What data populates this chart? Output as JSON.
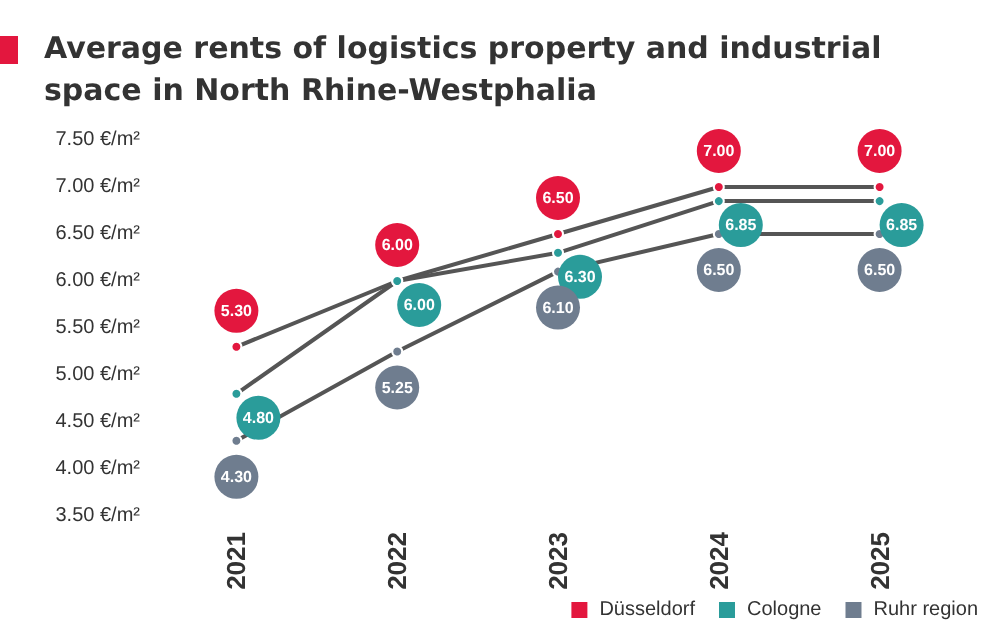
{
  "chart_data": {
    "type": "line",
    "title": "Average rents of logistics property and industrial space in North Rhine-Westphalia",
    "categories": [
      "2021",
      "2022",
      "2023",
      "2024",
      "2025"
    ],
    "series": [
      {
        "name": "Düsseldorf",
        "color": "#e3173e",
        "values": [
          5.3,
          6.0,
          6.5,
          7.0,
          7.0
        ],
        "value_labels": [
          "5.30",
          "6.00",
          "6.50",
          "7.00",
          "7.00"
        ]
      },
      {
        "name": "Cologne",
        "color": "#2a9c9a",
        "values": [
          4.8,
          6.0,
          6.3,
          6.85,
          6.85
        ],
        "value_labels": [
          "4.80",
          "6.00",
          "6.30",
          "6.85",
          "6.85"
        ]
      },
      {
        "name": "Ruhr region",
        "color": "#6f7d8f",
        "values": [
          4.3,
          5.25,
          6.1,
          6.5,
          6.5
        ],
        "value_labels": [
          "4.30",
          "5.25",
          "6.10",
          "6.50",
          "6.50"
        ]
      }
    ],
    "ylim": [
      3.5,
      7.5
    ],
    "yticks": [
      {
        "value": 3.5,
        "label": "3.50 €/m²"
      },
      {
        "value": 4,
        "label": "4.00 €/m²"
      },
      {
        "value": 4.5,
        "label": "4.50 €/m²"
      },
      {
        "value": 5,
        "label": "5.00 €/m²"
      },
      {
        "value": 5.5,
        "label": "5.50 €/m²"
      },
      {
        "value": 6,
        "label": "6.00 €/m²"
      },
      {
        "value": 6.5,
        "label": "6.50 €/m²"
      },
      {
        "value": 7,
        "label": "7.00 €/m²"
      },
      {
        "value": 7.5,
        "label": "7.50 €/m²"
      }
    ],
    "grid": false,
    "legend": "bottom right",
    "marker": "circle",
    "line_style": "solid"
  }
}
